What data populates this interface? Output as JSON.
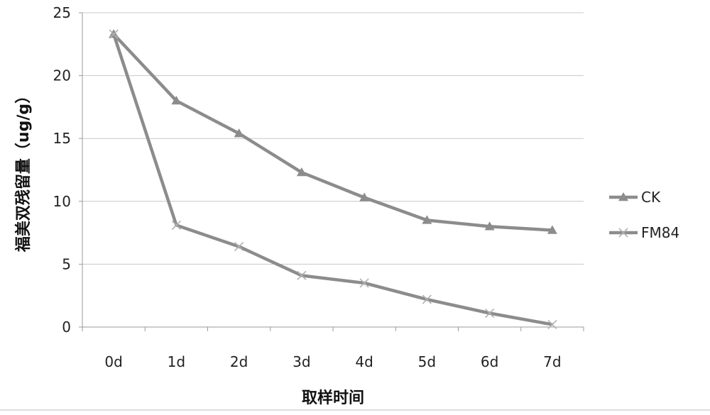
{
  "chart_data": {
    "type": "line",
    "xlabel": "取样时间",
    "ylabel": "福美双残留量（ug/g）",
    "categories": [
      "0d",
      "1d",
      "2d",
      "3d",
      "4d",
      "5d",
      "6d",
      "7d"
    ],
    "ylim": [
      0,
      25
    ],
    "yticks": [
      0,
      5,
      10,
      15,
      20,
      25
    ],
    "grid": true,
    "legend_position": "right",
    "series": [
      {
        "name": "CK",
        "marker": "triangle",
        "color": "#8c8c8c",
        "values": [
          23.3,
          18.0,
          15.4,
          12.3,
          10.3,
          8.5,
          8.0,
          7.7
        ]
      },
      {
        "name": "FM84",
        "marker": "x",
        "color": "#8c8c8c",
        "values": [
          23.3,
          8.1,
          6.4,
          4.1,
          3.5,
          2.2,
          1.1,
          0.2
        ]
      }
    ]
  }
}
